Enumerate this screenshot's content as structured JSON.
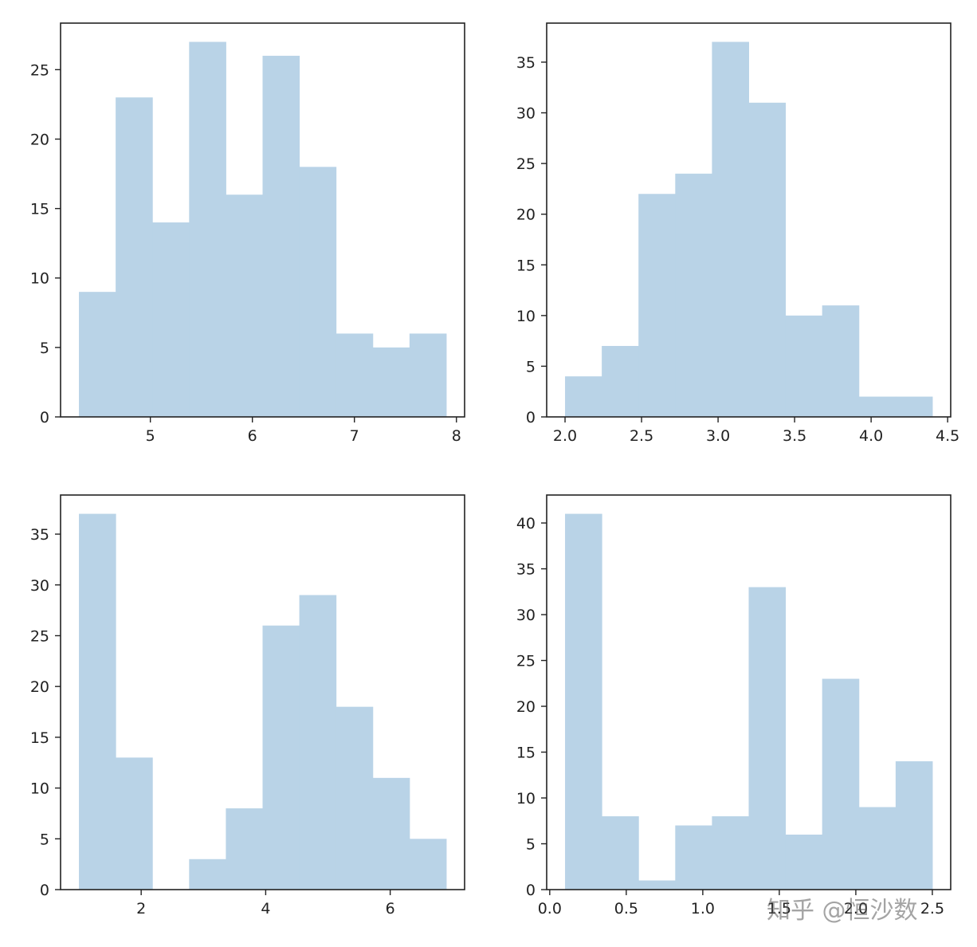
{
  "colors": {
    "bar": "#b9d3e7",
    "axis": "#222222"
  },
  "watermark": "知乎 @恒沙数",
  "chart_data": [
    {
      "type": "bar",
      "bin_edges": [
        4.3,
        4.66,
        5.02,
        5.38,
        5.74,
        6.1,
        6.46,
        6.82,
        7.18,
        7.54,
        7.9
      ],
      "values": [
        9,
        23,
        14,
        27,
        16,
        26,
        18,
        6,
        5,
        6
      ],
      "xlim": [
        4.12,
        8.08
      ],
      "ylim": [
        0,
        28.35
      ],
      "xticks": [
        5,
        6,
        7,
        8
      ],
      "xtick_labels": [
        "5",
        "6",
        "7",
        "8"
      ],
      "yticks": [
        0,
        5,
        10,
        15,
        20,
        25
      ],
      "ytick_labels": [
        "0",
        "5",
        "10",
        "15",
        "20",
        "25"
      ]
    },
    {
      "type": "bar",
      "bin_edges": [
        2.0,
        2.24,
        2.48,
        2.72,
        2.96,
        3.2,
        3.44,
        3.68,
        3.92,
        4.16,
        4.4
      ],
      "values": [
        4,
        7,
        22,
        24,
        37,
        31,
        10,
        11,
        2,
        2
      ],
      "xlim": [
        1.88,
        4.52
      ],
      "ylim": [
        0,
        38.85
      ],
      "xticks": [
        2.0,
        2.5,
        3.0,
        3.5,
        4.0,
        4.5
      ],
      "xtick_labels": [
        "2.0",
        "2.5",
        "3.0",
        "3.5",
        "4.0",
        "4.5"
      ],
      "yticks": [
        0,
        5,
        10,
        15,
        20,
        25,
        30,
        35
      ],
      "ytick_labels": [
        "0",
        "5",
        "10",
        "15",
        "20",
        "25",
        "30",
        "35"
      ]
    },
    {
      "type": "bar",
      "bin_edges": [
        1.0,
        1.59,
        2.18,
        2.77,
        3.36,
        3.95,
        4.54,
        5.13,
        5.72,
        6.31,
        6.9
      ],
      "values": [
        37,
        13,
        0,
        3,
        8,
        26,
        29,
        18,
        11,
        5
      ],
      "xlim": [
        0.705,
        7.195
      ],
      "ylim": [
        0,
        38.85
      ],
      "xticks": [
        2,
        4,
        6
      ],
      "xtick_labels": [
        "2",
        "4",
        "6"
      ],
      "yticks": [
        0,
        5,
        10,
        15,
        20,
        25,
        30,
        35
      ],
      "ytick_labels": [
        "0",
        "5",
        "10",
        "15",
        "20",
        "25",
        "30",
        "35"
      ]
    },
    {
      "type": "bar",
      "bin_edges": [
        0.1,
        0.34,
        0.58,
        0.82,
        1.06,
        1.3,
        1.54,
        1.78,
        2.02,
        2.26,
        2.5
      ],
      "values": [
        41,
        8,
        1,
        7,
        8,
        33,
        6,
        23,
        9,
        14
      ],
      "xlim": [
        -0.02,
        2.62
      ],
      "ylim": [
        0,
        43.05
      ],
      "xticks": [
        0.0,
        0.5,
        1.0,
        1.5,
        2.0,
        2.5
      ],
      "xtick_labels": [
        "0.0",
        "0.5",
        "1.0",
        "1.5",
        "2.0",
        "2.5"
      ],
      "yticks": [
        0,
        5,
        10,
        15,
        20,
        25,
        30,
        35,
        40
      ],
      "ytick_labels": [
        "0",
        "5",
        "10",
        "15",
        "20",
        "25",
        "30",
        "35",
        "40"
      ]
    }
  ]
}
